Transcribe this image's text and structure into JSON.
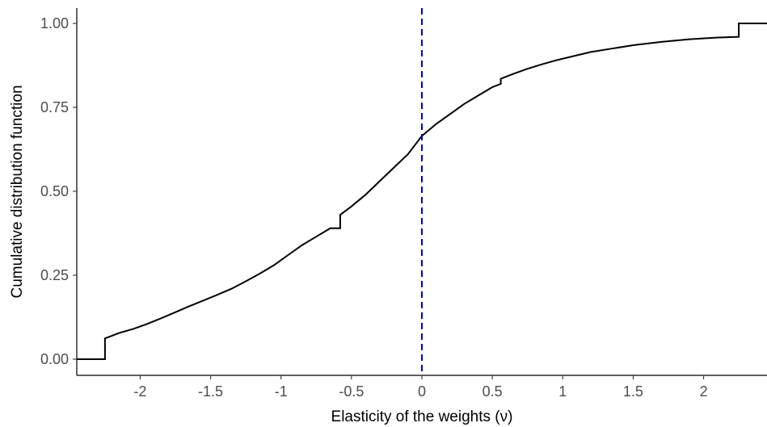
{
  "chart_data": {
    "type": "line",
    "title": "",
    "xlabel": "Elasticity of the weights (ν)",
    "ylabel": "Cumulative distribution function",
    "xlim": [
      -2.45,
      2.45
    ],
    "ylim": [
      0,
      1
    ],
    "x_ticks": [
      -2,
      -1.5,
      -1,
      -0.5,
      0,
      0.5,
      1,
      1.5,
      2
    ],
    "x_tick_labels": [
      "-2",
      "-1.5",
      "-1",
      "-0.5",
      "0",
      "0.5",
      "1",
      "1.5",
      "2"
    ],
    "y_ticks": [
      0,
      0.25,
      0.5,
      0.75,
      1
    ],
    "y_tick_labels": [
      "0.00",
      "0.25",
      "0.50",
      "0.75",
      "1.00"
    ],
    "grid": false,
    "reference_line": {
      "x": 0,
      "style": "dashed",
      "color": "#0000cc"
    },
    "series": [
      {
        "color": "#000000",
        "step": true,
        "x": [
          -2.45,
          -2.25,
          -2.25,
          -2.2,
          -2.15,
          -2.05,
          -1.95,
          -1.85,
          -1.75,
          -1.65,
          -1.55,
          -1.45,
          -1.35,
          -1.25,
          -1.15,
          -1.05,
          -0.95,
          -0.85,
          -0.75,
          -0.65,
          -0.58,
          -0.58,
          -0.5,
          -0.4,
          -0.3,
          -0.2,
          -0.1,
          0,
          0.1,
          0.2,
          0.3,
          0.4,
          0.5,
          0.56,
          0.56,
          0.65,
          0.75,
          0.85,
          0.95,
          1.05,
          1.2,
          1.35,
          1.5,
          1.7,
          1.9,
          2.1,
          2.25,
          2.25,
          2.45
        ],
        "y": [
          0,
          0,
          0.062,
          0.07,
          0.078,
          0.09,
          0.105,
          0.122,
          0.14,
          0.158,
          0.175,
          0.192,
          0.21,
          0.232,
          0.255,
          0.28,
          0.31,
          0.34,
          0.365,
          0.39,
          0.39,
          0.43,
          0.455,
          0.49,
          0.53,
          0.57,
          0.61,
          0.665,
          0.7,
          0.73,
          0.76,
          0.785,
          0.81,
          0.82,
          0.835,
          0.85,
          0.865,
          0.878,
          0.89,
          0.9,
          0.915,
          0.925,
          0.935,
          0.945,
          0.953,
          0.958,
          0.96,
          1.0,
          1.0
        ]
      }
    ]
  }
}
